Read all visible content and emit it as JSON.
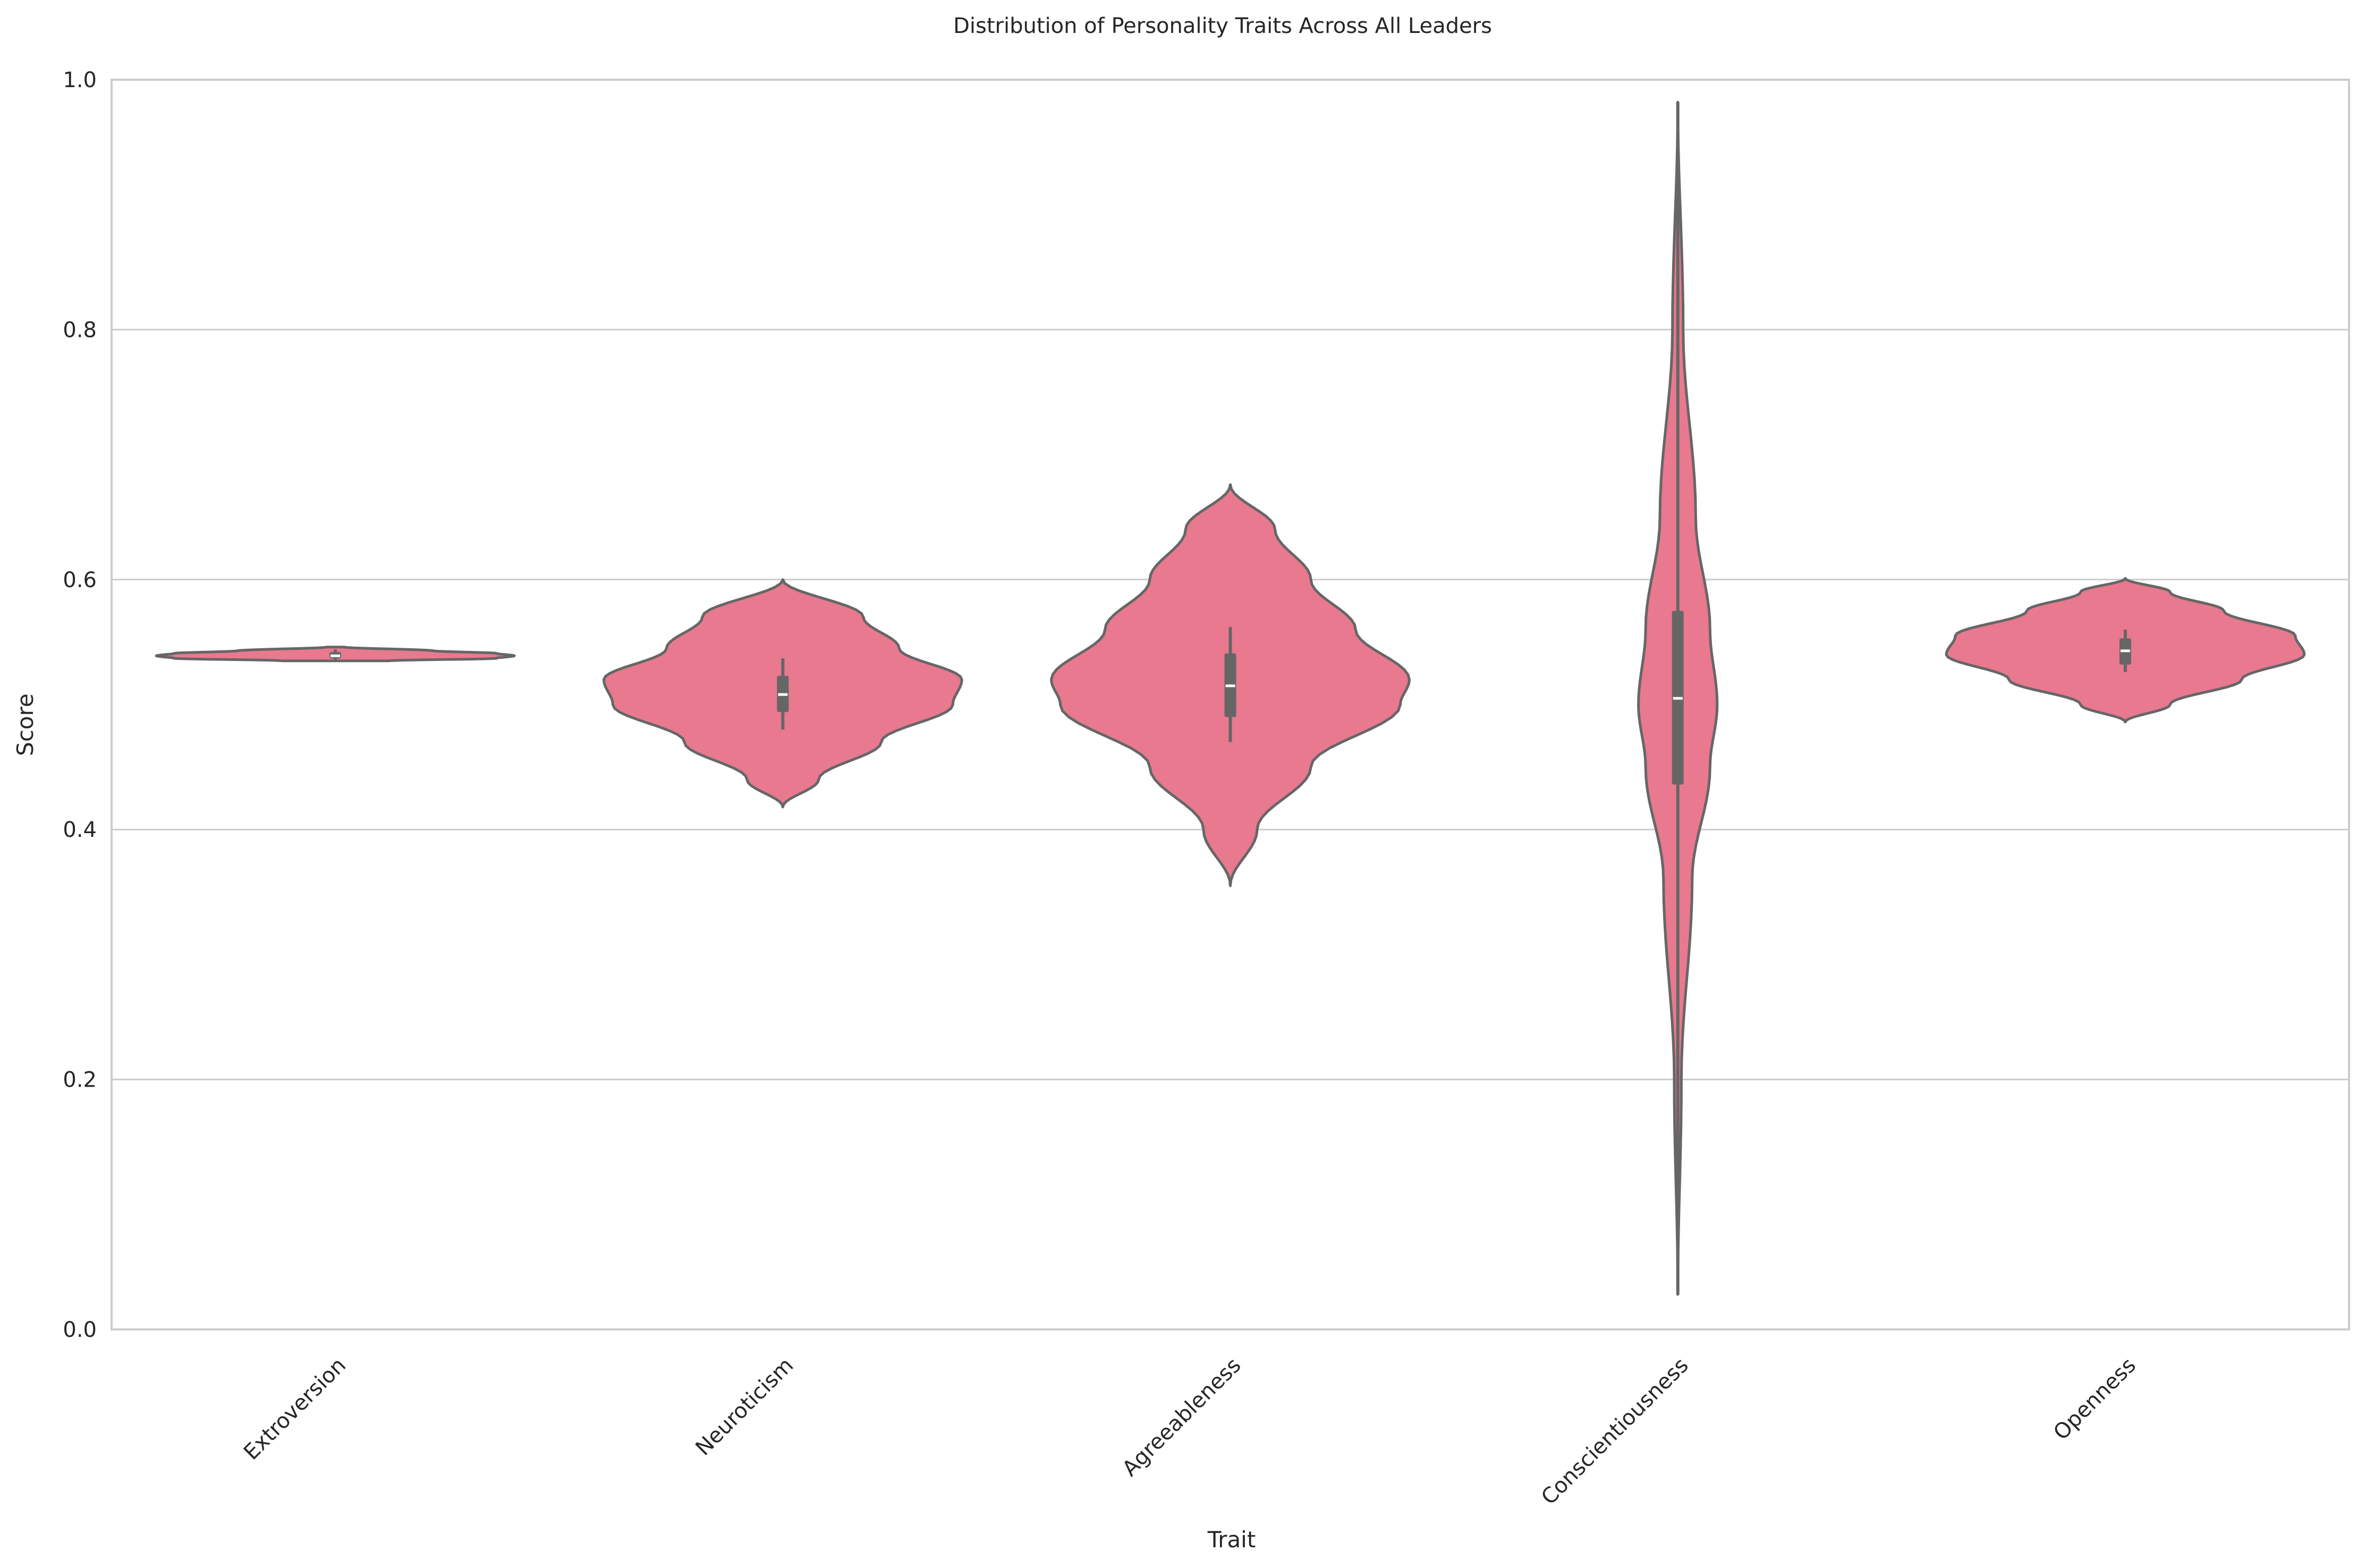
{
  "chart_data": {
    "type": "violin",
    "title": "Distribution of Personality Traits Across All Leaders",
    "xlabel": "Trait",
    "ylabel": "Score",
    "ylim": [
      0,
      1
    ],
    "yticks": [
      0,
      0.2,
      0.4,
      0.6,
      0.8,
      1.0
    ],
    "ytick_labels": [
      "0.0",
      "0.2",
      "0.4",
      "0.6",
      "0.8",
      "1.0"
    ],
    "grid": true,
    "categories": [
      "Extroversion",
      "Neuroticism",
      "Agreeableness",
      "Conscientiousness",
      "Openness"
    ],
    "colors": {
      "violin_fill": "#e8798f",
      "violin_edge": "#666666",
      "median": "#ffffff",
      "grid": "#cccccc",
      "spine": "#cccccc"
    },
    "violins": [
      {
        "category": "Extroversion",
        "min": 0.535,
        "max": 0.546,
        "q1": 0.537,
        "median": 0.539,
        "q3": 0.542,
        "whisker_low": 0.535,
        "whisker_high": 0.544,
        "shape": [
          [
            0.535,
            0.3
          ],
          [
            0.537,
            0.9
          ],
          [
            0.539,
            1.0
          ],
          [
            0.541,
            0.9
          ],
          [
            0.543,
            0.55
          ],
          [
            0.546,
            0.05
          ]
        ]
      },
      {
        "category": "Neuroticism",
        "min": 0.418,
        "max": 0.6,
        "q1": 0.494,
        "median": 0.508,
        "q3": 0.523,
        "whisker_low": 0.48,
        "whisker_high": 0.537,
        "shape": [
          [
            0.418,
            0.0
          ],
          [
            0.44,
            0.2
          ],
          [
            0.47,
            0.55
          ],
          [
            0.5,
            0.95
          ],
          [
            0.52,
            1.0
          ],
          [
            0.545,
            0.65
          ],
          [
            0.57,
            0.45
          ],
          [
            0.6,
            0.0
          ]
        ]
      },
      {
        "category": "Agreeableness",
        "min": 0.355,
        "max": 0.676,
        "q1": 0.49,
        "median": 0.515,
        "q3": 0.541,
        "whisker_low": 0.47,
        "whisker_high": 0.562,
        "shape": [
          [
            0.355,
            0.0
          ],
          [
            0.4,
            0.15
          ],
          [
            0.45,
            0.45
          ],
          [
            0.5,
            0.95
          ],
          [
            0.52,
            1.0
          ],
          [
            0.56,
            0.7
          ],
          [
            0.6,
            0.45
          ],
          [
            0.64,
            0.25
          ],
          [
            0.676,
            0.0
          ]
        ]
      },
      {
        "category": "Conscientiousness",
        "min": 0.028,
        "max": 0.982,
        "q1": 0.436,
        "median": 0.505,
        "q3": 0.575,
        "whisker_low": 0.028,
        "whisker_high": 0.982,
        "shape": [
          [
            0.028,
            0.0
          ],
          [
            0.2,
            0.02
          ],
          [
            0.36,
            0.08
          ],
          [
            0.45,
            0.18
          ],
          [
            0.5,
            0.22
          ],
          [
            0.56,
            0.18
          ],
          [
            0.65,
            0.1
          ],
          [
            0.8,
            0.03
          ],
          [
            0.982,
            0.0
          ]
        ]
      },
      {
        "category": "Openness",
        "min": 0.486,
        "max": 0.601,
        "q1": 0.532,
        "median": 0.543,
        "q3": 0.553,
        "whisker_low": 0.526,
        "whisker_high": 0.56,
        "shape": [
          [
            0.486,
            0.0
          ],
          [
            0.5,
            0.25
          ],
          [
            0.52,
            0.65
          ],
          [
            0.54,
            1.0
          ],
          [
            0.555,
            0.95
          ],
          [
            0.575,
            0.55
          ],
          [
            0.59,
            0.25
          ],
          [
            0.601,
            0.0
          ]
        ]
      }
    ]
  }
}
